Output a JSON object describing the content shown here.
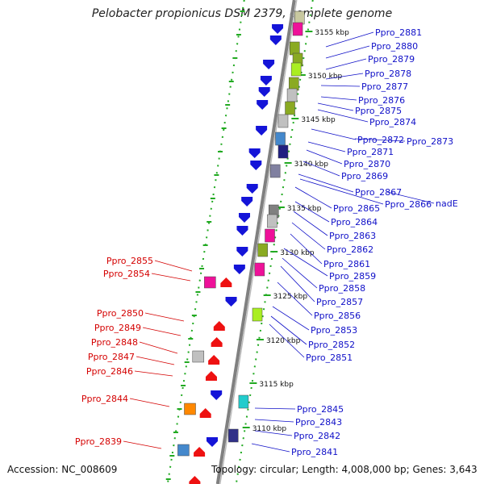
{
  "title": "Pelobacter propionicus DSM 2379, complete genome",
  "footer": {
    "accession": "Accession: NC_008609",
    "summary": "Topology: circular; Length: 4,008,000 bp; Genes: 3,643"
  },
  "colors": {
    "forward_gene": "#1414d8",
    "reverse_gene": "#ee1111",
    "forward_label": "#1010c8",
    "reverse_label": "#d40000",
    "backbone": "#808080",
    "tick": "#22aa22"
  },
  "kbp_markers": [
    "3155 kbp",
    "3150 kbp",
    "3145 kbp",
    "3140 kbp",
    "3135 kbp",
    "3130 kbp",
    "3125 kbp",
    "3120 kbp",
    "3115 kbp",
    "3110 kbp"
  ],
  "forward_labels": [
    "Ppro_2881",
    "Ppro_2880",
    "Ppro_2879",
    "Ppro_2878",
    "Ppro_2877",
    "Ppro_2876",
    "Ppro_2875",
    "Ppro_2874",
    "Ppro_2872",
    "Ppro_2873",
    "Ppro_2871",
    "Ppro_2870",
    "Ppro_2869",
    "Ppro_2867",
    "Ppro_2866",
    "nadE",
    "Ppro_2865",
    "Ppro_2864",
    "Ppro_2863",
    "Ppro_2862",
    "Ppro_2861",
    "Ppro_2859",
    "Ppro_2858",
    "Ppro_2857",
    "Ppro_2856",
    "Ppro_2853",
    "Ppro_2852",
    "Ppro_2851",
    "Ppro_2845",
    "Ppro_2843",
    "Ppro_2842",
    "Ppro_2841"
  ],
  "reverse_labels": [
    "Ppro_2855",
    "Ppro_2854",
    "Ppro_2850",
    "Ppro_2849",
    "Ppro_2848",
    "Ppro_2847",
    "Ppro_2846",
    "Ppro_2844",
    "Ppro_2839"
  ]
}
